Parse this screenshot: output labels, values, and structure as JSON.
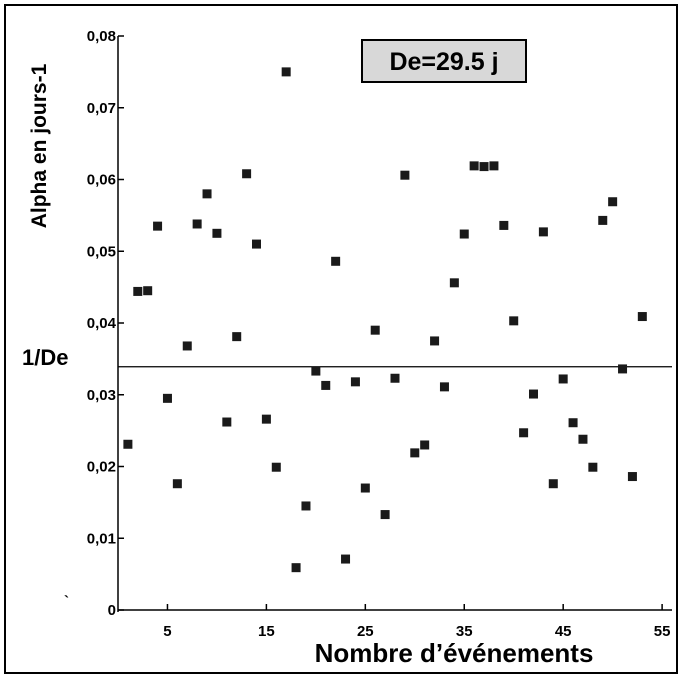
{
  "chart_data": {
    "type": "scatter",
    "title": "",
    "xlabel": "Nombre d’événements",
    "ylabel": "Alpha en jours-1",
    "xlim": [
      0,
      56
    ],
    "ylim": [
      0,
      0.08
    ],
    "x_ticks": [
      5,
      15,
      25,
      35,
      45,
      55
    ],
    "y_ticks": [
      {
        "value": 0,
        "label": "0"
      },
      {
        "value": 0.01,
        "label": "0,01"
      },
      {
        "value": 0.02,
        "label": "0,02"
      },
      {
        "value": 0.03,
        "label": "0,03"
      },
      {
        "value": 0.04,
        "label": "0,04"
      },
      {
        "value": 0.05,
        "label": "0,05"
      },
      {
        "value": 0.06,
        "label": "0,06"
      },
      {
        "value": 0.07,
        "label": "0,07"
      },
      {
        "value": 0.08,
        "label": "0,08"
      }
    ],
    "grid": false,
    "legend": "none",
    "marker_color": "#1a1a1a",
    "annotation": {
      "text": "De=29.5 j",
      "position": "top-right",
      "background": "#d8d8d8"
    },
    "reference_line": {
      "label": "1/De",
      "y": 0.0339
    },
    "series": [
      {
        "points": [
          [
            1,
            0.0231
          ],
          [
            2,
            0.0444
          ],
          [
            3,
            0.0445
          ],
          [
            4,
            0.0535
          ],
          [
            5,
            0.0295
          ],
          [
            6,
            0.0176
          ],
          [
            7,
            0.0368
          ],
          [
            8,
            0.0538
          ],
          [
            9,
            0.058
          ],
          [
            10,
            0.0525
          ],
          [
            11,
            0.0262
          ],
          [
            12,
            0.0381
          ],
          [
            13,
            0.0608
          ],
          [
            14,
            0.051
          ],
          [
            15,
            0.0266
          ],
          [
            16,
            0.0199
          ],
          [
            17,
            0.075
          ],
          [
            18,
            0.0059
          ],
          [
            19,
            0.0145
          ],
          [
            20,
            0.0333
          ],
          [
            21,
            0.0313
          ],
          [
            22,
            0.0486
          ],
          [
            23,
            0.0071
          ],
          [
            24,
            0.0318
          ],
          [
            25,
            0.017
          ],
          [
            26,
            0.039
          ],
          [
            27,
            0.0133
          ],
          [
            28,
            0.0323
          ],
          [
            29,
            0.0606
          ],
          [
            30,
            0.0219
          ],
          [
            31,
            0.023
          ],
          [
            32,
            0.0375
          ],
          [
            33,
            0.0311
          ],
          [
            34,
            0.0456
          ],
          [
            35,
            0.0524
          ],
          [
            36,
            0.0619
          ],
          [
            37,
            0.0618
          ],
          [
            38,
            0.0619
          ],
          [
            39,
            0.0536
          ],
          [
            40,
            0.0403
          ],
          [
            41,
            0.0247
          ],
          [
            42,
            0.0301
          ],
          [
            43,
            0.0527
          ],
          [
            44,
            0.0176
          ],
          [
            45,
            0.0322
          ],
          [
            46,
            0.0261
          ],
          [
            47,
            0.0238
          ],
          [
            48,
            0.0199
          ],
          [
            49,
            0.0543
          ],
          [
            50,
            0.0569
          ],
          [
            51,
            0.0336
          ],
          [
            52,
            0.0186
          ],
          [
            53,
            0.0409
          ]
        ]
      }
    ]
  }
}
